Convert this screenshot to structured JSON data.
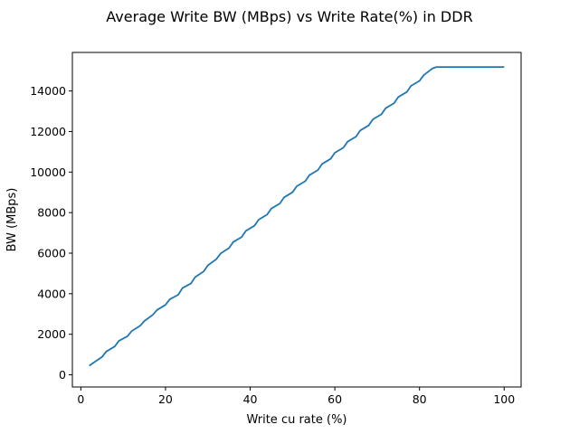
{
  "chart_data": {
    "type": "line",
    "title": "Average Write BW (MBps) vs Write Rate(%) in DDR",
    "xlabel": "Write cu rate (%)",
    "ylabel": "BW (MBps)",
    "xlim": [
      -2,
      104
    ],
    "ylim": [
      -600,
      15900
    ],
    "xticks": [
      0,
      20,
      40,
      60,
      80,
      100
    ],
    "yticks": [
      0,
      2000,
      4000,
      6000,
      8000,
      10000,
      12000,
      14000
    ],
    "grid": false,
    "line_color": "#1f77b4",
    "series": [
      {
        "x": [
          2,
          3,
          5,
          6,
          8,
          9,
          11,
          12,
          14,
          15,
          17,
          18,
          20,
          21,
          23,
          24,
          26,
          27,
          29,
          30,
          32,
          33,
          35,
          36,
          38,
          39,
          41,
          42,
          44,
          45,
          47,
          48,
          50,
          51,
          53,
          54,
          56,
          57,
          59,
          60,
          62,
          63,
          65,
          66,
          68,
          69,
          71,
          72,
          74,
          75,
          77,
          78,
          80,
          81,
          83,
          84,
          86,
          88,
          90,
          92,
          94,
          96,
          98,
          100
        ],
        "values": [
          450,
          600,
          880,
          1150,
          1400,
          1680,
          1900,
          2150,
          2420,
          2650,
          2960,
          3200,
          3450,
          3720,
          3950,
          4280,
          4500,
          4820,
          5100,
          5400,
          5700,
          5980,
          6250,
          6550,
          6800,
          7100,
          7350,
          7650,
          7900,
          8200,
          8450,
          8750,
          9000,
          9300,
          9550,
          9850,
          10100,
          10400,
          10650,
          10950,
          11200,
          11500,
          11750,
          12050,
          12300,
          12600,
          12850,
          13150,
          13400,
          13700,
          13950,
          14250,
          14500,
          14780,
          15100,
          15180,
          15180,
          15180,
          15180,
          15180,
          15180,
          15180,
          15180,
          15180
        ]
      }
    ]
  }
}
